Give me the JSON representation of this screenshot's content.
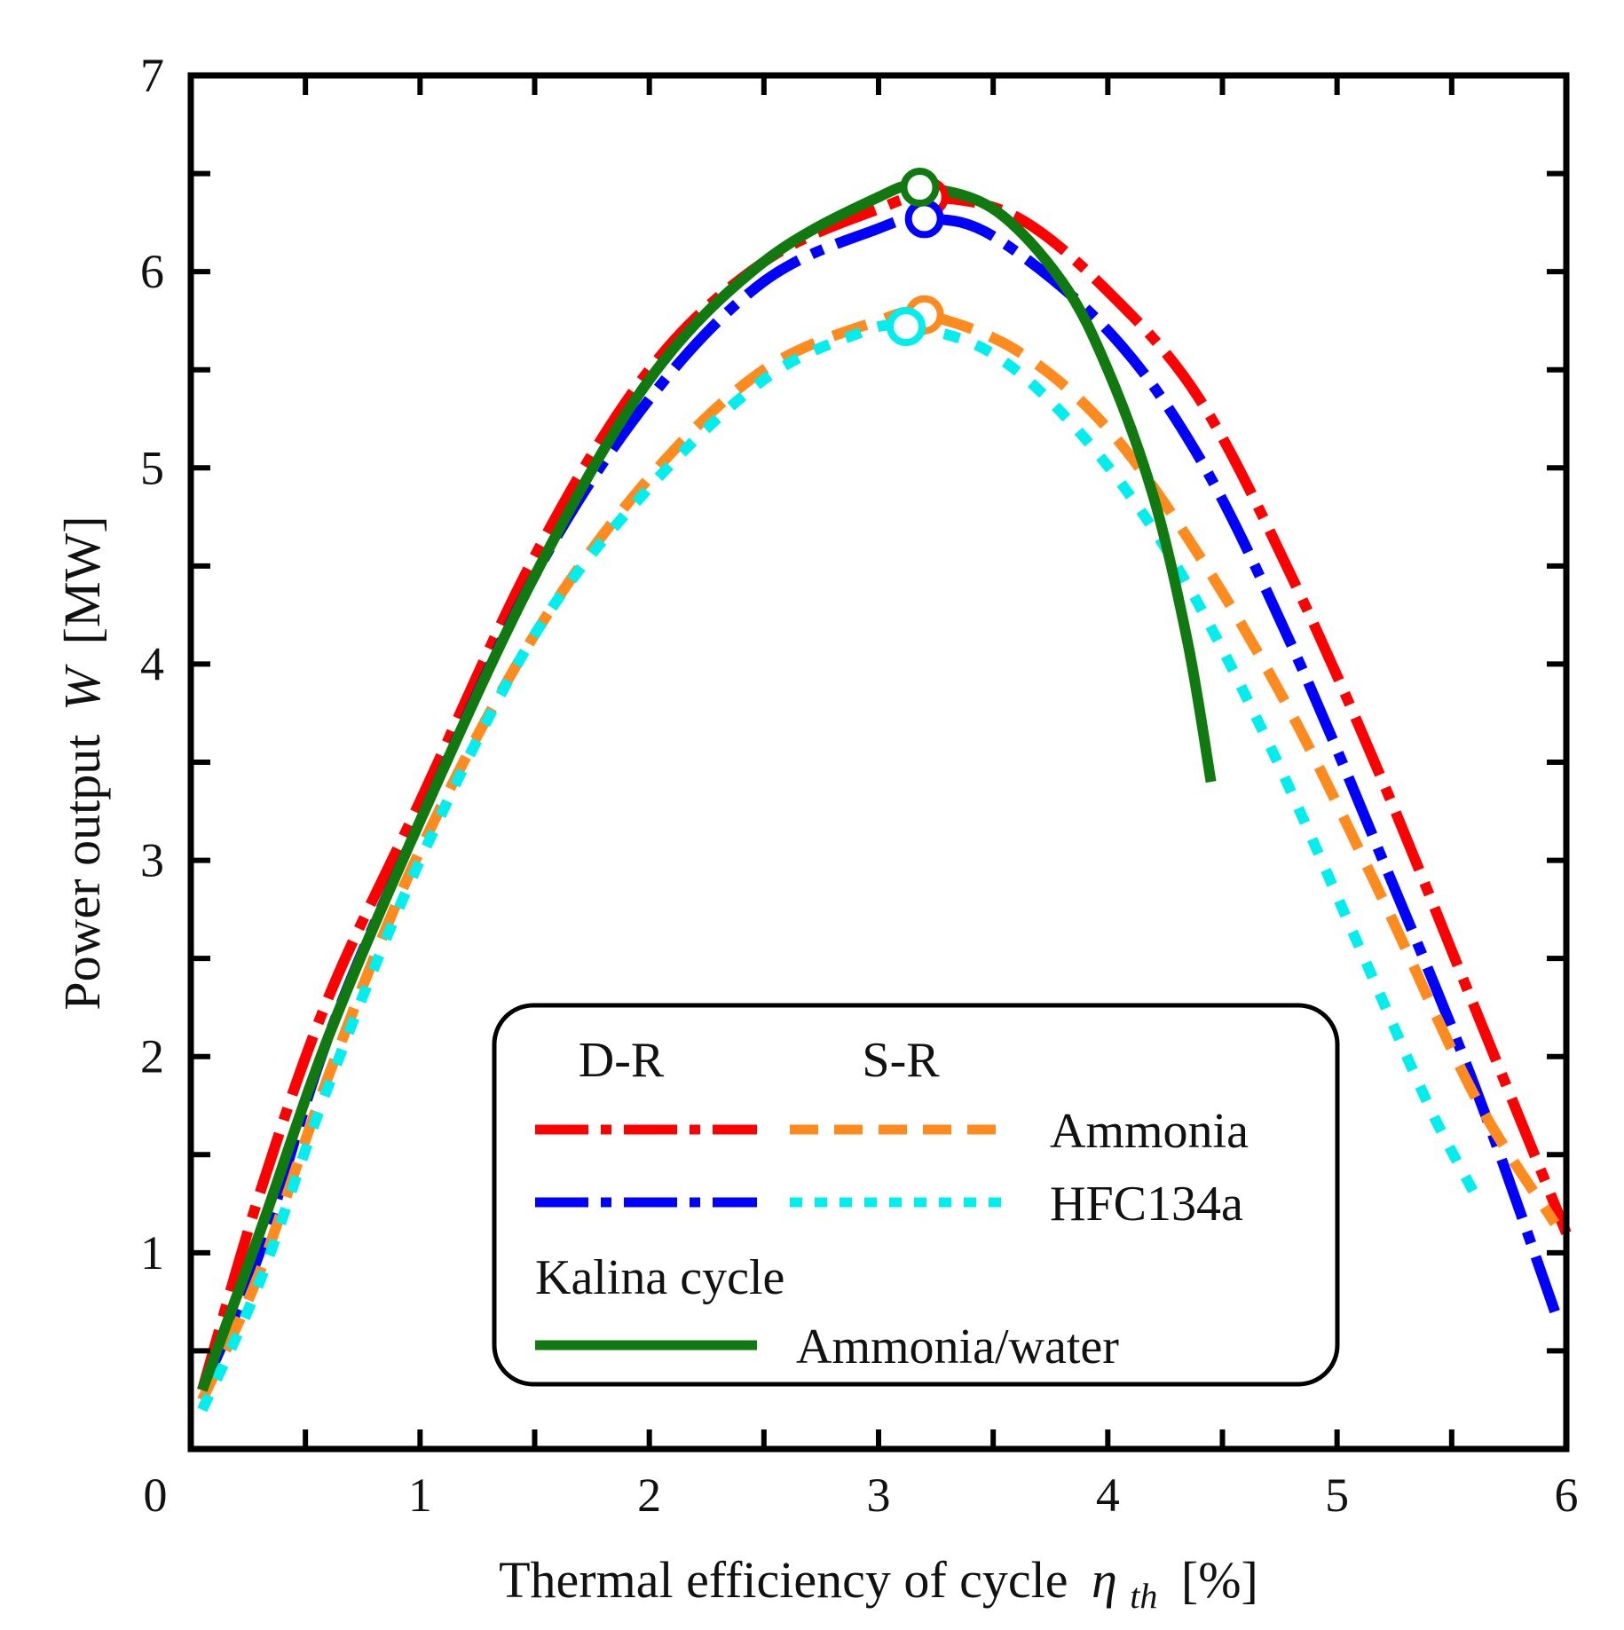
{
  "chart_data": {
    "type": "line",
    "xlabel": "Thermal efficiency of cycle",
    "xlabel_symbol": "η",
    "xlabel_subscript": "th",
    "xlabel_unit": "[%]",
    "ylabel": "Power output",
    "ylabel_symbol": "W",
    "ylabel_unit": "[MW]",
    "xlim": [
      0,
      6
    ],
    "ylim": [
      0,
      7
    ],
    "xticks": [
      0,
      1,
      2,
      3,
      4,
      5,
      6
    ],
    "xtick_labels": [
      "0",
      "1",
      "2",
      "3",
      "4",
      "5",
      "6"
    ],
    "yticks": [
      1,
      2,
      3,
      4,
      5,
      6,
      7
    ],
    "ytick_labels": [
      "1",
      "2",
      "3",
      "4",
      "5",
      "6",
      "7"
    ],
    "grid": false,
    "legend": {
      "placement": "bottom-center",
      "header_dr": "D-R",
      "header_sr": "S-R",
      "row_ammonia": "Ammonia",
      "row_hfc": "HFC134a",
      "kalina_title": "Kalina cycle",
      "row_kalina": "Ammonia/water"
    },
    "series": [
      {
        "name": "D-R Ammonia",
        "color": "#ff0000",
        "style": "dashdot",
        "x": [
          0.05,
          0.3,
          0.6,
          1.0,
          1.5,
          2.0,
          2.5,
          3.0,
          3.22,
          3.6,
          4.0,
          4.4,
          4.8,
          5.2,
          5.6,
          6.0
        ],
        "y": [
          0.3,
          1.3,
          2.3,
          3.3,
          4.55,
          5.5,
          6.05,
          6.32,
          6.38,
          6.28,
          5.9,
          5.35,
          4.45,
          3.4,
          2.25,
          1.1
        ],
        "peak": [
          3.22,
          6.38
        ]
      },
      {
        "name": "D-R HFC134a",
        "color": "#0000ff",
        "style": "dashdot",
        "x": [
          0.05,
          0.3,
          0.6,
          1.0,
          1.5,
          2.0,
          2.5,
          3.0,
          3.2,
          3.5,
          4.0,
          4.4,
          4.8,
          5.2,
          5.6,
          5.95
        ],
        "y": [
          0.3,
          1.0,
          2.1,
          3.2,
          4.45,
          5.35,
          5.95,
          6.22,
          6.27,
          6.18,
          5.7,
          5.05,
          4.1,
          3.0,
          1.85,
          0.7
        ],
        "peak": [
          3.2,
          6.27
        ]
      },
      {
        "name": "S-R Ammonia",
        "color": "#ff8a1e",
        "style": "dashed",
        "x": [
          0.05,
          0.3,
          0.6,
          1.0,
          1.5,
          2.0,
          2.5,
          3.0,
          3.2,
          3.6,
          4.0,
          4.4,
          4.8,
          5.2,
          5.6,
          5.95
        ],
        "y": [
          0.25,
          0.9,
          1.9,
          3.05,
          4.15,
          4.95,
          5.5,
          5.75,
          5.78,
          5.6,
          5.2,
          4.55,
          3.75,
          2.8,
          1.8,
          1.15
        ],
        "peak": [
          3.2,
          5.78
        ]
      },
      {
        "name": "S-R HFC134a",
        "color": "#00eeee",
        "style": "dotted",
        "x": [
          0.05,
          0.3,
          0.6,
          1.0,
          1.5,
          2.0,
          2.5,
          2.9,
          3.12,
          3.5,
          3.9,
          4.3,
          4.7,
          5.1,
          5.4,
          5.6
        ],
        "y": [
          0.2,
          0.85,
          1.85,
          3.0,
          4.15,
          4.9,
          5.45,
          5.68,
          5.72,
          5.58,
          5.15,
          4.5,
          3.6,
          2.55,
          1.75,
          1.3
        ],
        "peak": [
          3.12,
          5.72
        ]
      },
      {
        "name": "Kalina Ammonia/water",
        "color": "#107a10",
        "style": "solid",
        "x": [
          0.05,
          0.3,
          0.6,
          1.0,
          1.5,
          2.0,
          2.5,
          3.0,
          3.18,
          3.5,
          3.8,
          4.0,
          4.2,
          4.35,
          4.45
        ],
        "y": [
          0.3,
          1.1,
          2.1,
          3.2,
          4.45,
          5.45,
          6.05,
          6.38,
          6.43,
          6.32,
          5.95,
          5.5,
          4.85,
          4.1,
          3.4
        ],
        "peak": [
          3.18,
          6.43
        ]
      }
    ]
  }
}
